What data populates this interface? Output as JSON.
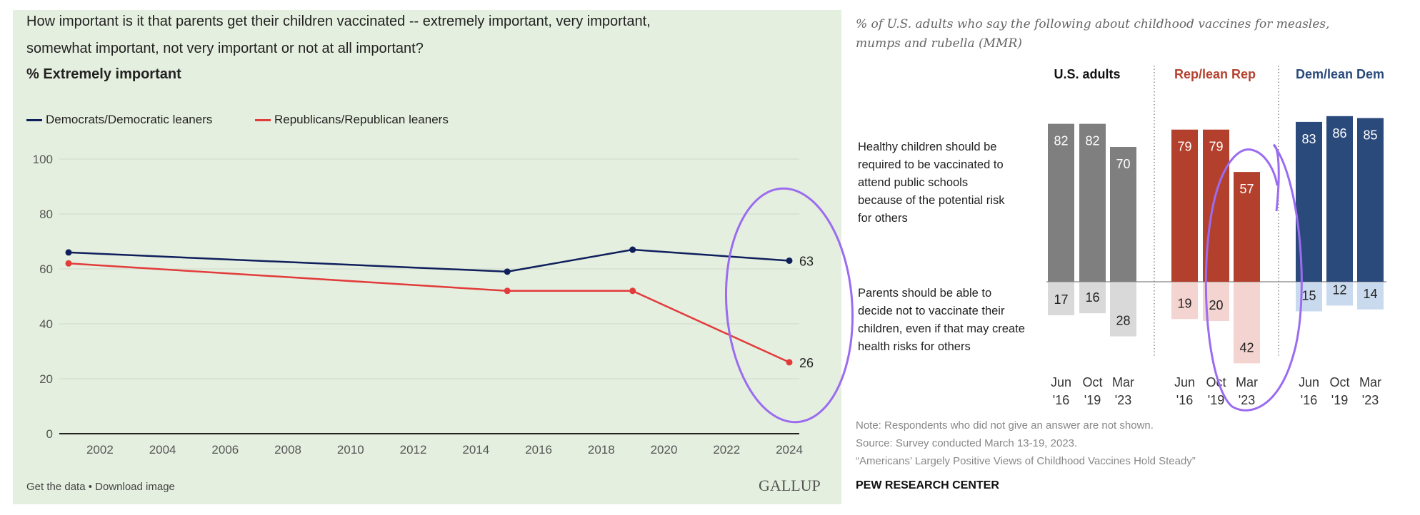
{
  "gallup": {
    "question_line1": "How important is it that parents get their children vaccinated -- extremely important, very important,",
    "question_line2": "somewhat important, not very important or not at all important?",
    "subtitle": "% Extremely important",
    "footer_links": "Get the data • Download image",
    "logo": "GALLUP",
    "panel_bg": "#e5efdf"
  },
  "chart_data": [
    {
      "type": "line",
      "title": "% Extremely important",
      "xlabel": "",
      "ylabel": "",
      "xlim": [
        2001,
        2024
      ],
      "ylim": [
        0,
        100
      ],
      "yticks": [
        0,
        20,
        40,
        60,
        80,
        100
      ],
      "xticks": [
        2002,
        2004,
        2006,
        2008,
        2010,
        2012,
        2014,
        2016,
        2018,
        2020,
        2022,
        2024
      ],
      "grid": true,
      "legend": "top-left",
      "series": [
        {
          "name": "Democrats/Democratic leaners",
          "color": "#0f1f5c",
          "x": [
            2001,
            2015,
            2019,
            2024
          ],
          "y": [
            66,
            59,
            67,
            63
          ],
          "end_label": "63"
        },
        {
          "name": "Republicans/Republican leaners",
          "color": "#e23b3b",
          "x": [
            2001,
            2015,
            2019,
            2024
          ],
          "y": [
            62,
            52,
            52,
            26
          ],
          "end_label": "26"
        }
      ]
    },
    {
      "type": "bar",
      "title": "% of U.S. adults who say the following about childhood vaccines for measles, mumps and rubella (MMR)",
      "row_labels": [
        "Healthy children should be required to be vaccinated to attend public schools because of the potential risk for others",
        "Parents should be able to decide not to vaccinate their children, even if that may create health risks for others"
      ],
      "groups": [
        {
          "name": "U.S. adults",
          "header_color": "#111111",
          "color_top": "#7f7f7f",
          "color_bottom": "#d9d9d9",
          "label_top_color": "#ffffff",
          "bars": [
            {
              "date": [
                "Jun",
                "'16"
              ],
              "top": 82,
              "bottom": 17
            },
            {
              "date": [
                "Oct",
                "'19"
              ],
              "top": 82,
              "bottom": 16
            },
            {
              "date": [
                "Mar",
                "'23"
              ],
              "top": 70,
              "bottom": 28
            }
          ]
        },
        {
          "name": "Rep/lean Rep",
          "header_color": "#b5412e",
          "color_top": "#b3402d",
          "color_bottom": "#f3d4d0",
          "label_top_color": "#ffffff",
          "bars": [
            {
              "date": [
                "Jun",
                "'16"
              ],
              "top": 79,
              "bottom": 19
            },
            {
              "date": [
                "Oct",
                "'19"
              ],
              "top": 79,
              "bottom": 20
            },
            {
              "date": [
                "Mar",
                "'23"
              ],
              "top": 57,
              "bottom": 42
            }
          ]
        },
        {
          "name": "Dem/lean Dem",
          "header_color": "#2a4a7b",
          "color_top": "#2b4a7c",
          "color_bottom": "#c9daef",
          "label_top_color": "#ffffff",
          "bars": [
            {
              "date": [
                "Jun",
                "'16"
              ],
              "top": 83,
              "bottom": 15
            },
            {
              "date": [
                "Oct",
                "'19"
              ],
              "top": 86,
              "bottom": 12
            },
            {
              "date": [
                "Mar",
                "'23"
              ],
              "top": 85,
              "bottom": 14
            }
          ]
        }
      ]
    }
  ],
  "pew": {
    "title_line1": "% of U.S. adults who say the following about childhood vaccines for measles,",
    "title_line2": "mumps and rubella (MMR)",
    "note": "Note: Respondents who did not give an answer are not shown.",
    "source": "Source: Survey conducted March 13-19, 2023.",
    "report": "“Americans’ Largely Positive Views of Childhood Vaccines Hold Steady”",
    "brand": "PEW RESEARCH CENTER"
  },
  "annotation_color": "#9b6cf0"
}
